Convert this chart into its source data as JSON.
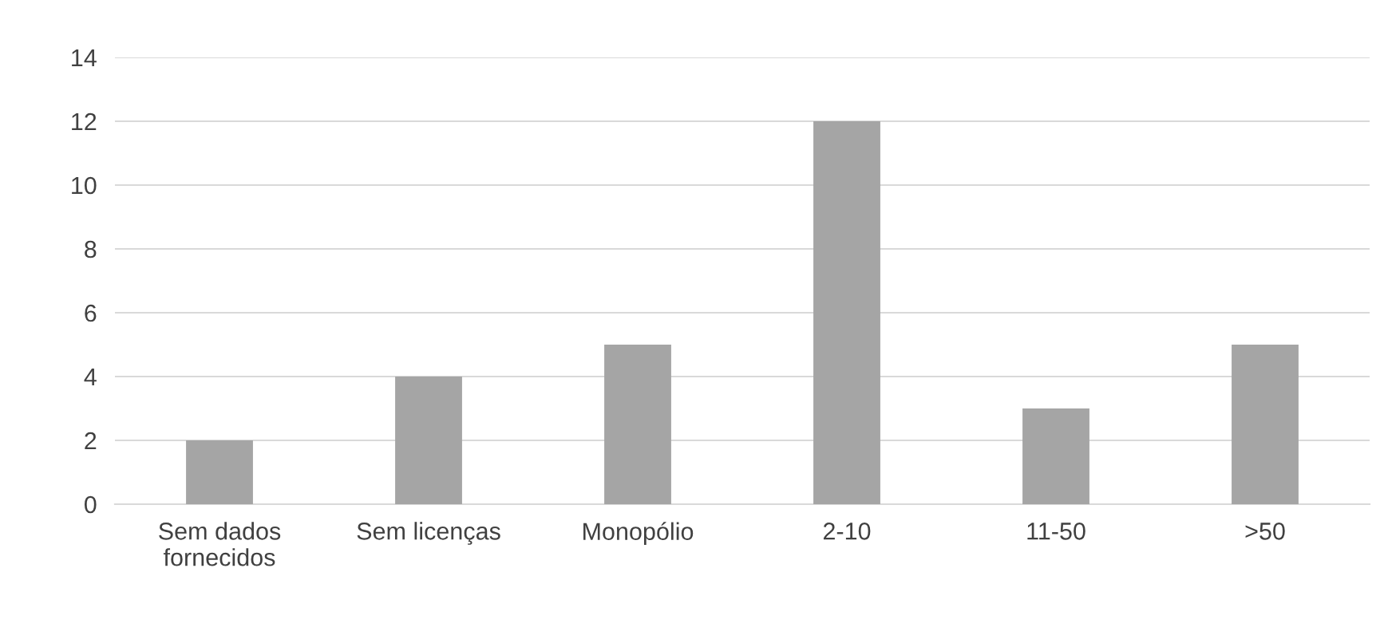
{
  "chart_data": {
    "type": "bar",
    "categories": [
      "Sem dados fornecidos",
      "Sem licenças",
      "Monopólio",
      "2-10",
      "11-50",
      ">50"
    ],
    "values": [
      2,
      4,
      5,
      12,
      3,
      5
    ],
    "color": "#a5a5a5",
    "ylim": [
      0,
      14
    ],
    "yticks": [
      0,
      2,
      4,
      6,
      8,
      10,
      12,
      14
    ],
    "grid": "y"
  }
}
